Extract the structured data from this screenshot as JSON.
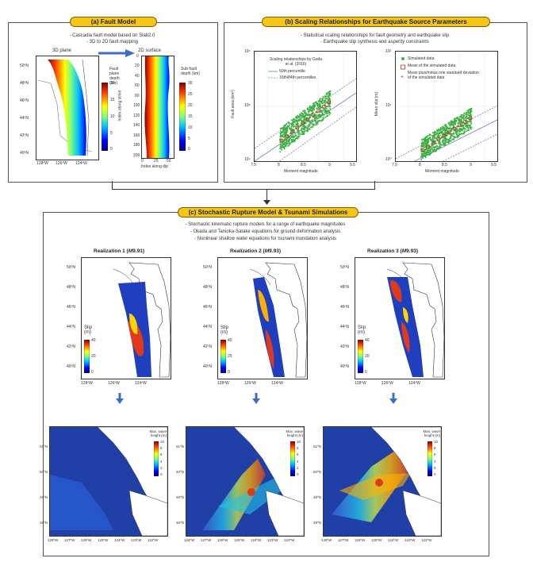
{
  "panel_a": {
    "title": "(a)  Fault Model",
    "bullets": [
      "- Cascadia fault model based on Slab2.0",
      "- 3D to 2D fault mapping"
    ],
    "plane3d_label": "3D plane",
    "surface2d_label": "2D surface",
    "depth_cb_label": "Fault plane depth (km)",
    "depth_cb_ticks": [
      "20",
      "15",
      "10",
      "5",
      "0"
    ],
    "lat_ticks": [
      "50ºN",
      "48ºN",
      "46ºN",
      "44ºN",
      "42ºN",
      "40ºN"
    ],
    "lon_ticks": [
      "128ºW",
      "126ºW",
      "124ºW"
    ],
    "strike_axis_label": "Index along strike",
    "strike_ticks": [
      "0",
      "20",
      "40",
      "60",
      "80",
      "100",
      "120",
      "140",
      "160",
      "180",
      "200"
    ],
    "dip_axis_label": "Index along dip",
    "dip_ticks": [
      "0",
      "25",
      "50"
    ],
    "subfault_cb_label": "Sub-fault depth (km)",
    "subfault_cb_ticks": [
      "30",
      "25",
      "20",
      "15",
      "10",
      "5",
      "0"
    ]
  },
  "panel_b": {
    "title": "(b)  Scaling Relationships for Earthquake Source Parameters",
    "bullets": [
      "- Statistical scaling relationships for fault geometry and earthquake slip",
      "- Earthquake slip synthesis and asperity constraints"
    ],
    "left_plot": {
      "ylabel": "Fault area (km²)",
      "xlabel": "Moment magnitude",
      "y_ticks": [
        "10⁶",
        "10⁵",
        "10⁴"
      ],
      "x_ticks": [
        "7.5",
        "8",
        "8.5",
        "9",
        "9.5"
      ],
      "legend_title": "Scaling relationships by Goda et al. (2016)",
      "legend_items": [
        "50th percentile",
        "16th/84th percentiles"
      ]
    },
    "right_plot": {
      "ylabel": "Mean slip (m)",
      "xlabel": "Moment magnitude",
      "y_ticks": [
        "10²",
        "10¹",
        "10⁰"
      ],
      "x_ticks": [
        "7.5",
        "8",
        "8.5",
        "9",
        "9.5"
      ],
      "legend_items": [
        "Simulated data",
        "Mean of the simulated data",
        "Mean plus/minus one standard deviation of the simulated data"
      ]
    }
  },
  "panel_c": {
    "title": "(c)  Stochastic Rupture Model & Tsunami Simulations",
    "bullets": [
      "- Stochastic kinematic rupture models for a range of earthquake magnitudes",
      "- Okada and Tanioka-Satake equations for ground deformation analysis",
      "- Nonlinear shallow water equations for tsunami inundation analysis"
    ],
    "realizations": [
      {
        "label": "Realization 1 (",
        "mag": "M",
        "mag_value": "9.91",
        "suffix": ")"
      },
      {
        "label": "Realization 2 (",
        "mag": "M",
        "mag_value": "9.93",
        "suffix": ")"
      },
      {
        "label": "Realization 3 (",
        "mag": "M",
        "mag_value": "9.93",
        "suffix": ")"
      }
    ],
    "slip_label": "Slip (m)",
    "slip_ticks": [
      "40",
      "20",
      "0"
    ],
    "lat_ticks": [
      "50ºN",
      "48ºN",
      "46ºN",
      "44ºN",
      "42ºN",
      "40ºN"
    ],
    "lon_ticks": [
      "128ºW",
      "126ºW",
      "124ºW"
    ],
    "wave_label": "Max. wave height (m)",
    "wave_ticks": [
      "10",
      "8",
      "6",
      "4",
      "2",
      "0"
    ],
    "tsu_lat_ticks": [
      "51ºN",
      "50ºN",
      "49ºN",
      "48ºN"
    ],
    "tsu_lon_ticks": [
      "128ºW",
      "127ºW",
      "126ºW",
      "125ºW",
      "124ºW",
      "123ºW",
      "122ºW"
    ]
  },
  "colors": {
    "pill": "#f5c518",
    "simulated": "#3cb043",
    "mean": "#d62728",
    "arrow": "#3a6fc4"
  }
}
